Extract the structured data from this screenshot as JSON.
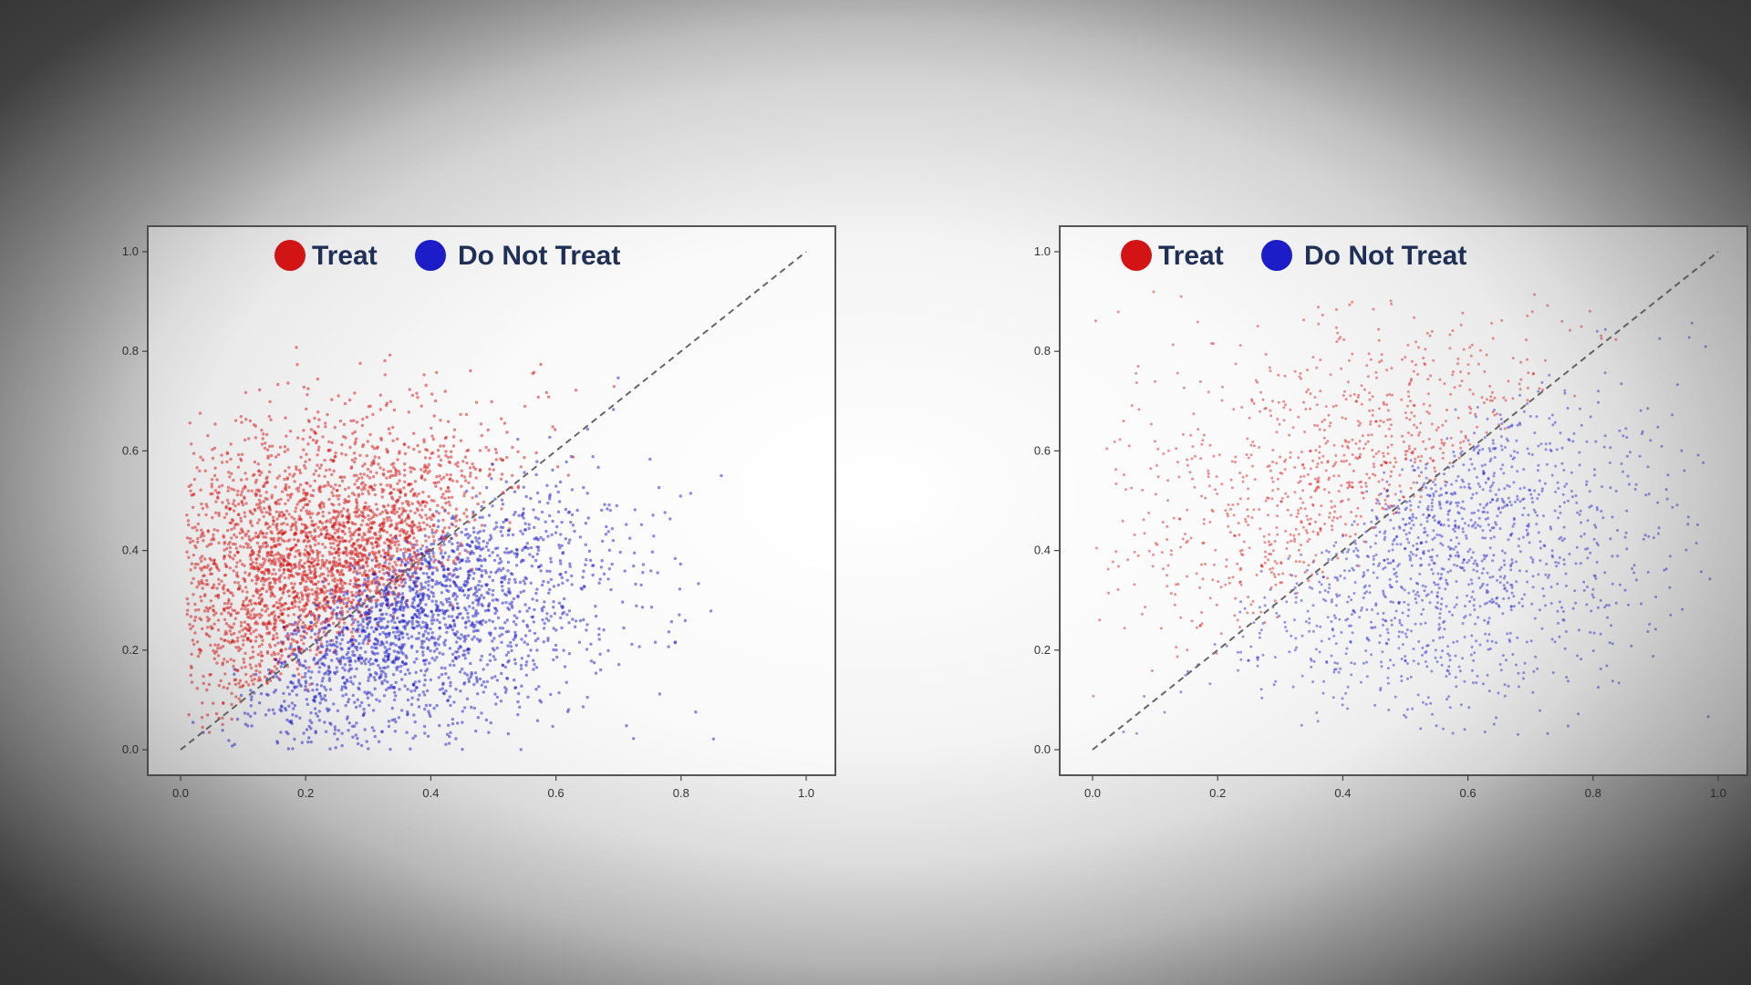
{
  "colors": {
    "treat": "#d41414",
    "do_not_treat": "#1c1cc8",
    "diagonal": "#666666",
    "frame": "#555555"
  },
  "chart_data": [
    {
      "type": "scatter",
      "title": "",
      "xlabel": "",
      "ylabel": "",
      "xlim": [
        0.0,
        1.0
      ],
      "ylim": [
        0.0,
        1.0
      ],
      "x_ticks": [
        "0.0",
        "0.2",
        "0.4",
        "0.6",
        "0.8",
        "1.0"
      ],
      "y_ticks": [
        "0.0",
        "0.2",
        "0.4",
        "0.6",
        "0.8",
        "1.0"
      ],
      "grid": false,
      "legend_position": "top",
      "reference_line": {
        "style": "dashed",
        "from": [
          0.0,
          0.0
        ],
        "to": [
          1.0,
          1.0
        ]
      },
      "series": [
        {
          "name": "Treat",
          "color": "#d41414",
          "approx_points": 18000,
          "x_range": [
            0.0,
            0.82
          ],
          "y_range": [
            0.0,
            0.75
          ],
          "center": [
            0.22,
            0.38
          ]
        },
        {
          "name": "Do Not Treat",
          "color": "#1c1cc8",
          "approx_points": 18000,
          "x_range": [
            0.02,
            0.96
          ],
          "y_range": [
            0.0,
            0.72
          ],
          "center": [
            0.5,
            0.3
          ]
        }
      ]
    },
    {
      "type": "scatter",
      "title": "",
      "xlabel": "",
      "ylabel": "",
      "xlim": [
        0.0,
        1.0
      ],
      "ylim": [
        0.0,
        1.0
      ],
      "x_ticks": [
        "0.0",
        "0.2",
        "0.4",
        "0.6",
        "0.8",
        "1.0"
      ],
      "y_ticks": [
        "0.0",
        "0.2",
        "0.4",
        "0.6",
        "0.8",
        "1.0"
      ],
      "grid": false,
      "legend_position": "top",
      "reference_line": {
        "style": "dashed",
        "from": [
          0.0,
          0.0
        ],
        "to": [
          1.0,
          1.0
        ]
      },
      "series": [
        {
          "name": "Treat",
          "color": "#d41414",
          "approx_points": 6000,
          "x_range": [
            0.0,
            0.78
          ],
          "y_range": [
            0.14,
            0.95
          ],
          "center": [
            0.25,
            0.45
          ]
        },
        {
          "name": "Do Not Treat",
          "color": "#1c1cc8",
          "approx_points": 6000,
          "x_range": [
            0.15,
            0.98
          ],
          "y_range": [
            0.03,
            0.75
          ],
          "center": [
            0.58,
            0.32
          ]
        }
      ]
    }
  ]
}
